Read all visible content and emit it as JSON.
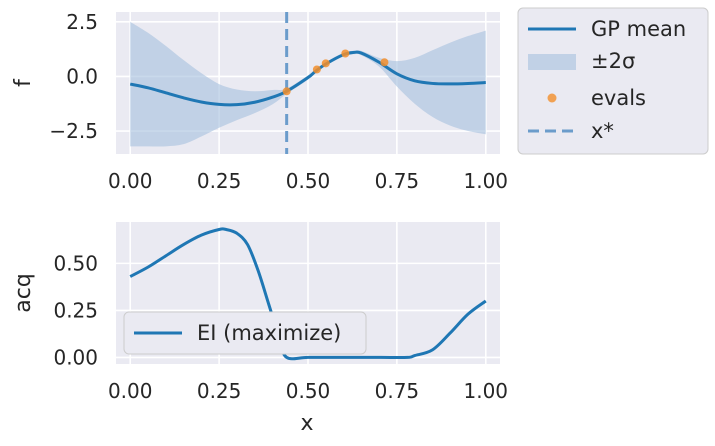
{
  "chart_data": [
    {
      "type": "line",
      "ylabel": "f",
      "xlabel": "",
      "xlim": [
        -0.04,
        1.04
      ],
      "ylim": [
        -3.55,
        2.95
      ],
      "xticks": [
        "0.00",
        "0.25",
        "0.50",
        "0.75",
        "1.00"
      ],
      "xtick_values": [
        0,
        0.25,
        0.5,
        0.75,
        1.0
      ],
      "yticks": [
        "−2.5",
        "0.0",
        "2.5"
      ],
      "ytick_values": [
        -2.5,
        0,
        2.5
      ],
      "grid": true,
      "legend_placement": "outside-right",
      "legend": {
        "mean": "GP mean",
        "band": "±2σ",
        "evals": "evals",
        "xstar": "x*"
      },
      "series": [
        {
          "name": "GP mean",
          "x": [
            0.0,
            0.05,
            0.1,
            0.15,
            0.2,
            0.25,
            0.3,
            0.35,
            0.4,
            0.44,
            0.5,
            0.52,
            0.55,
            0.6,
            0.63,
            0.65,
            0.7,
            0.75,
            0.8,
            0.85,
            0.9,
            0.95,
            1.0
          ],
          "y": [
            -0.35,
            -0.52,
            -0.75,
            -0.98,
            -1.17,
            -1.28,
            -1.29,
            -1.18,
            -0.95,
            -0.68,
            -0.05,
            0.22,
            0.57,
            1.0,
            1.1,
            1.07,
            0.65,
            0.12,
            -0.2,
            -0.32,
            -0.34,
            -0.32,
            -0.28
          ]
        },
        {
          "name": "±2σ",
          "x": [
            0.0,
            0.05,
            0.1,
            0.15,
            0.2,
            0.25,
            0.3,
            0.35,
            0.4,
            0.44,
            0.5,
            0.52,
            0.55,
            0.6,
            0.63,
            0.65,
            0.7,
            0.75,
            0.8,
            0.85,
            0.9,
            0.95,
            1.0
          ],
          "upper": [
            2.5,
            2.0,
            1.4,
            0.75,
            0.15,
            -0.35,
            -0.6,
            -0.68,
            -0.62,
            -0.55,
            0.05,
            0.3,
            0.65,
            1.07,
            1.18,
            1.17,
            0.85,
            0.7,
            0.85,
            1.2,
            1.55,
            1.85,
            2.1
          ],
          "lower": [
            -3.2,
            -3.2,
            -3.2,
            -3.1,
            -2.75,
            -2.35,
            -2.0,
            -1.68,
            -1.28,
            -0.8,
            -0.15,
            0.14,
            0.5,
            0.93,
            1.02,
            0.97,
            0.45,
            -0.46,
            -1.25,
            -1.85,
            -2.25,
            -2.5,
            -2.65
          ]
        },
        {
          "name": "evals",
          "x": [
            0.44,
            0.525,
            0.55,
            0.605,
            0.715
          ],
          "y": [
            -0.68,
            0.32,
            0.6,
            1.05,
            0.65
          ]
        }
      ],
      "vline": {
        "name": "x*",
        "x": 0.44
      }
    },
    {
      "type": "line",
      "ylabel": "acq",
      "xlabel": "x",
      "xlim": [
        -0.04,
        1.04
      ],
      "ylim": [
        -0.035,
        0.72
      ],
      "xticks": [
        "0.00",
        "0.25",
        "0.50",
        "0.75",
        "1.00"
      ],
      "xtick_values": [
        0,
        0.25,
        0.5,
        0.75,
        1.0
      ],
      "yticks": [
        "0.00",
        "0.25",
        "0.50"
      ],
      "ytick_values": [
        0,
        0.25,
        0.5
      ],
      "grid": true,
      "legend_placement": "lower-left",
      "legend": {
        "ei": "EI (maximize)"
      },
      "series": [
        {
          "name": "EI (maximize)",
          "x": [
            0.0,
            0.05,
            0.1,
            0.15,
            0.2,
            0.25,
            0.27,
            0.3,
            0.33,
            0.36,
            0.39,
            0.42,
            0.44,
            0.5,
            0.6,
            0.7,
            0.78,
            0.8,
            0.85,
            0.9,
            0.95,
            1.0
          ],
          "y": [
            0.43,
            0.48,
            0.54,
            0.6,
            0.65,
            0.68,
            0.68,
            0.66,
            0.6,
            0.46,
            0.28,
            0.1,
            0.0,
            0.0,
            0.0,
            0.0,
            0.0,
            0.01,
            0.04,
            0.13,
            0.23,
            0.3
          ]
        }
      ]
    }
  ]
}
